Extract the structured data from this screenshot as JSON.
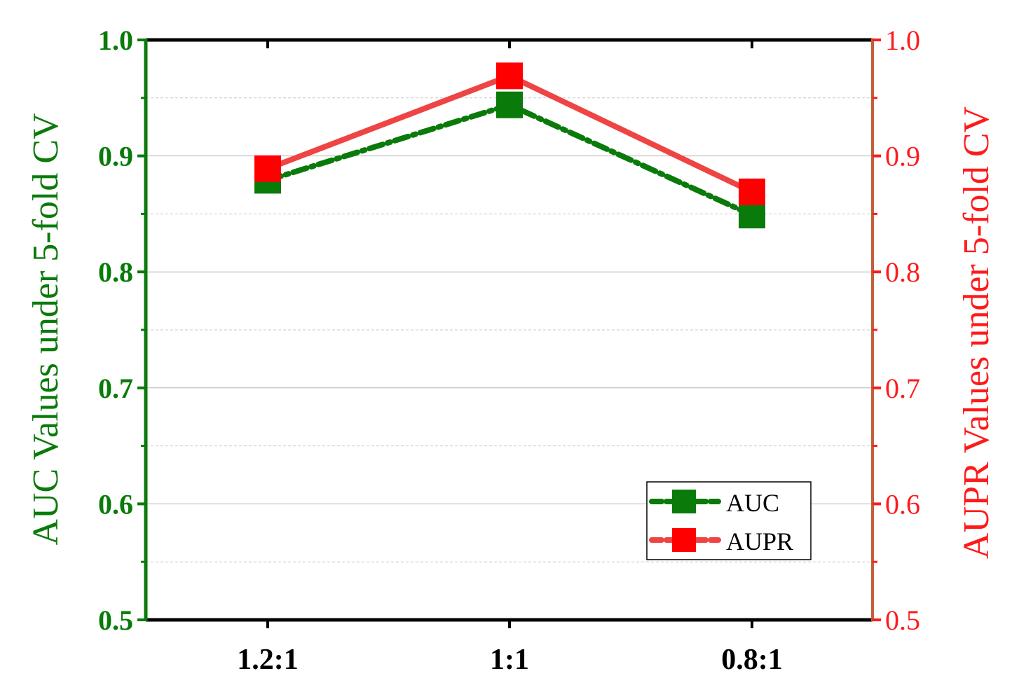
{
  "chart_data": {
    "type": "line",
    "categories": [
      "1.2:1",
      "1:1",
      "0.8:1"
    ],
    "series": [
      {
        "name": "AUC",
        "axis": "left",
        "values": [
          0.879,
          0.944,
          0.849
        ],
        "color": "#0a7a0a"
      },
      {
        "name": "AUPR",
        "axis": "right",
        "values": [
          0.889,
          0.969,
          0.869
        ],
        "color": "#ef4444",
        "marker_color": "#ff0000"
      }
    ],
    "ylabel_left": "AUC Values under 5-fold CV",
    "ylabel_right": "AUPR Values under 5-fold CV",
    "ylim_left": [
      0.5,
      1.0
    ],
    "ylim_right": [
      0.5,
      1.0
    ],
    "yticks": [
      "0.5",
      "0.6",
      "0.7",
      "0.8",
      "0.9",
      "1.0"
    ],
    "left_axis_color": "#0a7a0a",
    "right_axis_color": "#ff1a1a",
    "grid": true,
    "legend_position": "bottom-right"
  }
}
